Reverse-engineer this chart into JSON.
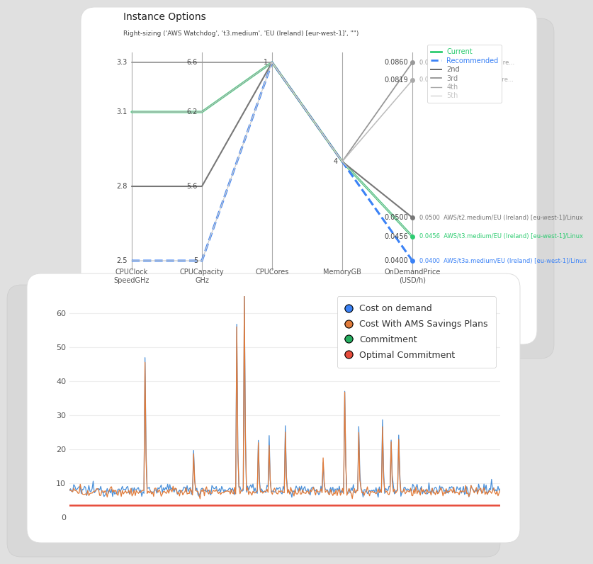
{
  "bg_color": "#e0e0e0",
  "card1_title": "Instance Options",
  "card1_subtitle": "Right-sizing ('AWS Watchdog', 't3.medium', 'EU (Ireland) [eur-west-1]', \"\")",
  "axes_labels": [
    "CPUClock\nSpeedGHz",
    "CPUCapacity\nGHz",
    "CPUCores",
    "MemoryGB",
    "OnDemandPrice\n(USD/h)"
  ],
  "axis_mins": [
    2.5,
    5.0,
    1.0,
    4.0,
    0.04
  ],
  "axis_maxs": [
    3.3,
    6.6,
    1.0,
    4.0,
    0.086
  ],
  "axis_ticks": [
    [
      2.5,
      2.8,
      3.1,
      3.3
    ],
    [
      5.0,
      5.6,
      6.2,
      6.6
    ],
    [
      1
    ],
    [
      4
    ],
    [
      0.086,
      0.0819,
      0.05,
      0.0456,
      0.04
    ]
  ],
  "series": [
    {
      "name": "current",
      "vals": [
        3.1,
        6.2,
        1.0,
        4.0,
        0.0456
      ],
      "color": "#2ecc71",
      "lw": 2.2,
      "ls": "-",
      "label": "Current"
    },
    {
      "name": "recommended",
      "vals": [
        2.5,
        5.0,
        1.0,
        4.0,
        0.04
      ],
      "color": "#3b82f6",
      "lw": 2.2,
      "ls": "--",
      "label": "Recommended"
    },
    {
      "name": "2nd",
      "vals": [
        2.8,
        5.6,
        1.0,
        4.0,
        0.05
      ],
      "color": "#777777",
      "lw": 1.5,
      "ls": "-",
      "label": "2nd"
    },
    {
      "name": "3rd",
      "vals": [
        3.3,
        6.6,
        1.0,
        4.0,
        0.086
      ],
      "color": "#999999",
      "lw": 1.3,
      "ls": "-",
      "label": "3rd"
    },
    {
      "name": "4th",
      "vals": [
        3.1,
        6.2,
        1.0,
        4.0,
        0.0819
      ],
      "color": "#bbbbbb",
      "lw": 1.1,
      "ls": "-",
      "label": "4th"
    },
    {
      "name": "5th",
      "vals": [
        2.5,
        5.0,
        1.0,
        4.0,
        0.0456
      ],
      "color": "#cccccc",
      "lw": 0.9,
      "ls": "-",
      "label": "5th"
    }
  ],
  "right_labels": [
    {
      "price": 0.086,
      "color": "#999999",
      "text": "AWS/c5a.large/EU (Ire..."
    },
    {
      "price": 0.0819,
      "color": "#aaaaaa",
      "text": "AWS/t3a.large/EU (Ire..."
    },
    {
      "price": 0.05,
      "color": "#777777",
      "text": "AWS/t2.medium/EU (Ireland) [eu-west-1]/Linux"
    },
    {
      "price": 0.0456,
      "color": "#2ecc71",
      "text": "AWS/t3.medium/EU (Ireland) [eu-west-1]/Linux"
    },
    {
      "price": 0.04,
      "color": "#3b82f6",
      "text": "AWS/t3a.medium/EU (Ireland) [eu-west-1]/Linux"
    }
  ],
  "legend1": [
    {
      "label": "Current",
      "color": "#2ecc71",
      "ls": "-",
      "lw": 2.0
    },
    {
      "label": "Recommended",
      "color": "#3b82f6",
      "ls": "--",
      "lw": 2.0
    },
    {
      "label": "2nd",
      "color": "#666666",
      "ls": "-",
      "lw": 1.4
    },
    {
      "label": "3rd",
      "color": "#888888",
      "ls": "-",
      "lw": 1.2
    },
    {
      "label": "4th",
      "color": "#aaaaaa",
      "ls": "-",
      "lw": 1.0
    },
    {
      "label": "5th",
      "color": "#cccccc",
      "ls": "-",
      "lw": 0.9
    }
  ],
  "ts_colors": {
    "demand": "#4a90d9",
    "savings": "#e07b3a",
    "commitment": "#27ae60",
    "optimal": "#e74c3c"
  },
  "legend2": [
    {
      "label": "Cost on demand",
      "color": "#4a90d9"
    },
    {
      "label": "Cost With AMS Savings Plans",
      "color": "#e07b3a"
    },
    {
      "label": "Commitment",
      "color": "#27ae60"
    },
    {
      "label": "Optimal Commitment",
      "color": "#e74c3c"
    }
  ]
}
